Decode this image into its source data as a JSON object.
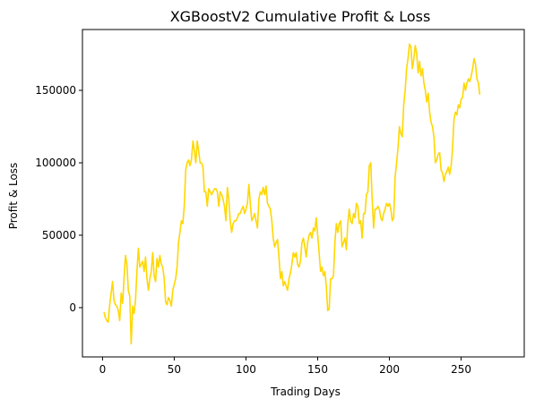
{
  "chart_data": {
    "type": "line",
    "title": "XGBoostV2 Cumulative Profit & Loss",
    "xlabel": "Trading Days",
    "ylabel": "Profit & Loss",
    "xlim": [
      -14,
      294
    ],
    "ylim": [
      -34000,
      192000
    ],
    "xticks": [
      0,
      50,
      100,
      150,
      200,
      250
    ],
    "yticks": [
      0,
      50000,
      100000,
      150000
    ],
    "xtick_labels": [
      "0",
      "50",
      "100",
      "150",
      "200",
      "250"
    ],
    "ytick_labels": [
      "0",
      "50000",
      "100000",
      "150000"
    ],
    "grid": false,
    "series": [
      {
        "color": "#FFD700",
        "points": [
          [
            1,
            -3000
          ],
          [
            2,
            -7000
          ],
          [
            3,
            -9000
          ],
          [
            4,
            -10000
          ],
          [
            5,
            2000
          ],
          [
            6,
            10000
          ],
          [
            7,
            18000
          ],
          [
            8,
            5000
          ],
          [
            9,
            2000
          ],
          [
            10,
            1000
          ],
          [
            11,
            -2000
          ],
          [
            12,
            -9000
          ],
          [
            13,
            10000
          ],
          [
            14,
            3000
          ],
          [
            15,
            20000
          ],
          [
            16,
            36000
          ],
          [
            17,
            30000
          ],
          [
            18,
            12000
          ],
          [
            19,
            8000
          ],
          [
            20,
            -25000
          ],
          [
            21,
            1000
          ],
          [
            22,
            -4000
          ],
          [
            23,
            5000
          ],
          [
            24,
            25000
          ],
          [
            25,
            41000
          ],
          [
            26,
            28000
          ],
          [
            27,
            30000
          ],
          [
            28,
            32000
          ],
          [
            29,
            25000
          ],
          [
            30,
            35000
          ],
          [
            31,
            20000
          ],
          [
            32,
            12000
          ],
          [
            33,
            20000
          ],
          [
            34,
            25000
          ],
          [
            35,
            38000
          ],
          [
            36,
            22000
          ],
          [
            37,
            18000
          ],
          [
            38,
            34000
          ],
          [
            39,
            28000
          ],
          [
            40,
            36000
          ],
          [
            41,
            30000
          ],
          [
            42,
            28000
          ],
          [
            43,
            20000
          ],
          [
            44,
            4000
          ],
          [
            45,
            2000
          ],
          [
            46,
            7000
          ],
          [
            47,
            5000
          ],
          [
            48,
            1000
          ],
          [
            49,
            12000
          ],
          [
            50,
            16000
          ],
          [
            51,
            20000
          ],
          [
            52,
            28000
          ],
          [
            53,
            45000
          ],
          [
            54,
            52000
          ],
          [
            55,
            60000
          ],
          [
            56,
            58000
          ],
          [
            57,
            70000
          ],
          [
            58,
            95000
          ],
          [
            59,
            100000
          ],
          [
            60,
            102000
          ],
          [
            61,
            98000
          ],
          [
            62,
            102000
          ],
          [
            63,
            115000
          ],
          [
            64,
            108000
          ],
          [
            65,
            100000
          ],
          [
            66,
            115000
          ],
          [
            67,
            108000
          ],
          [
            68,
            100000
          ],
          [
            69,
            100000
          ],
          [
            70,
            97000
          ],
          [
            71,
            80000
          ],
          [
            72,
            80000
          ],
          [
            73,
            70000
          ],
          [
            74,
            82000
          ],
          [
            75,
            80000
          ],
          [
            76,
            78000
          ],
          [
            77,
            80000
          ],
          [
            78,
            82000
          ],
          [
            79,
            82000
          ],
          [
            80,
            80000
          ],
          [
            81,
            70000
          ],
          [
            82,
            80000
          ],
          [
            83,
            78000
          ],
          [
            84,
            75000
          ],
          [
            85,
            70000
          ],
          [
            86,
            60000
          ],
          [
            87,
            83000
          ],
          [
            88,
            75000
          ],
          [
            89,
            60000
          ],
          [
            90,
            52000
          ],
          [
            91,
            58000
          ],
          [
            92,
            60000
          ],
          [
            93,
            60000
          ],
          [
            94,
            62000
          ],
          [
            95,
            65000
          ],
          [
            96,
            65000
          ],
          [
            97,
            68000
          ],
          [
            98,
            70000
          ],
          [
            99,
            65000
          ],
          [
            100,
            68000
          ],
          [
            101,
            72000
          ],
          [
            102,
            85000
          ],
          [
            103,
            72000
          ],
          [
            104,
            60000
          ],
          [
            105,
            62000
          ],
          [
            106,
            65000
          ],
          [
            107,
            60000
          ],
          [
            108,
            55000
          ],
          [
            109,
            75000
          ],
          [
            110,
            80000
          ],
          [
            111,
            78000
          ],
          [
            112,
            83000
          ],
          [
            113,
            78000
          ],
          [
            114,
            84000
          ],
          [
            115,
            72000
          ],
          [
            116,
            70000
          ],
          [
            117,
            68000
          ],
          [
            118,
            60000
          ],
          [
            119,
            48000
          ],
          [
            120,
            42000
          ],
          [
            121,
            45000
          ],
          [
            122,
            47000
          ],
          [
            123,
            35000
          ],
          [
            124,
            20000
          ],
          [
            125,
            25000
          ],
          [
            126,
            15000
          ],
          [
            127,
            18000
          ],
          [
            128,
            15000
          ],
          [
            129,
            12000
          ],
          [
            130,
            20000
          ],
          [
            131,
            24000
          ],
          [
            132,
            30000
          ],
          [
            133,
            38000
          ],
          [
            134,
            35000
          ],
          [
            135,
            38000
          ],
          [
            136,
            30000
          ],
          [
            137,
            28000
          ],
          [
            138,
            32000
          ],
          [
            139,
            45000
          ],
          [
            140,
            48000
          ],
          [
            141,
            42000
          ],
          [
            142,
            35000
          ],
          [
            143,
            45000
          ],
          [
            144,
            50000
          ],
          [
            145,
            52000
          ],
          [
            146,
            48000
          ],
          [
            147,
            55000
          ],
          [
            148,
            53000
          ],
          [
            149,
            62000
          ],
          [
            150,
            50000
          ],
          [
            151,
            38000
          ],
          [
            152,
            25000
          ],
          [
            153,
            28000
          ],
          [
            154,
            22000
          ],
          [
            155,
            25000
          ],
          [
            156,
            15000
          ],
          [
            157,
            -2000
          ],
          [
            158,
            -1000
          ],
          [
            159,
            20000
          ],
          [
            160,
            20000
          ],
          [
            161,
            22000
          ],
          [
            162,
            45000
          ],
          [
            163,
            58000
          ],
          [
            164,
            52000
          ],
          [
            165,
            58000
          ],
          [
            166,
            60000
          ],
          [
            167,
            42000
          ],
          [
            168,
            45000
          ],
          [
            169,
            48000
          ],
          [
            170,
            40000
          ],
          [
            171,
            58000
          ],
          [
            172,
            68000
          ],
          [
            173,
            60000
          ],
          [
            174,
            58000
          ],
          [
            175,
            65000
          ],
          [
            176,
            62000
          ],
          [
            177,
            72000
          ],
          [
            178,
            70000
          ],
          [
            179,
            58000
          ],
          [
            180,
            60000
          ],
          [
            181,
            48000
          ],
          [
            182,
            65000
          ],
          [
            183,
            65000
          ],
          [
            184,
            78000
          ],
          [
            185,
            80000
          ],
          [
            186,
            98000
          ],
          [
            187,
            100000
          ],
          [
            188,
            75000
          ],
          [
            189,
            55000
          ],
          [
            190,
            68000
          ],
          [
            191,
            68000
          ],
          [
            192,
            70000
          ],
          [
            193,
            68000
          ],
          [
            194,
            62000
          ],
          [
            195,
            60000
          ],
          [
            196,
            65000
          ],
          [
            197,
            68000
          ],
          [
            198,
            72000
          ],
          [
            199,
            70000
          ],
          [
            200,
            72000
          ],
          [
            201,
            68000
          ],
          [
            202,
            60000
          ],
          [
            203,
            62000
          ],
          [
            204,
            90000
          ],
          [
            205,
            100000
          ],
          [
            206,
            110000
          ],
          [
            207,
            125000
          ],
          [
            208,
            120000
          ],
          [
            209,
            118000
          ],
          [
            210,
            140000
          ],
          [
            211,
            150000
          ],
          [
            212,
            165000
          ],
          [
            213,
            172000
          ],
          [
            214,
            182000
          ],
          [
            215,
            180000
          ],
          [
            216,
            165000
          ],
          [
            217,
            172000
          ],
          [
            218,
            181000
          ],
          [
            219,
            175000
          ],
          [
            220,
            162000
          ],
          [
            221,
            170000
          ],
          [
            222,
            160000
          ],
          [
            223,
            165000
          ],
          [
            224,
            155000
          ],
          [
            225,
            150000
          ],
          [
            226,
            142000
          ],
          [
            227,
            148000
          ],
          [
            228,
            135000
          ],
          [
            229,
            128000
          ],
          [
            230,
            125000
          ],
          [
            231,
            118000
          ],
          [
            232,
            100000
          ],
          [
            233,
            102000
          ],
          [
            234,
            106000
          ],
          [
            235,
            107000
          ],
          [
            236,
            95000
          ],
          [
            237,
            93000
          ],
          [
            238,
            87000
          ],
          [
            239,
            92000
          ],
          [
            240,
            94000
          ],
          [
            241,
            97000
          ],
          [
            242,
            92000
          ],
          [
            243,
            98000
          ],
          [
            244,
            110000
          ],
          [
            245,
            130000
          ],
          [
            246,
            135000
          ],
          [
            247,
            133000
          ],
          [
            248,
            140000
          ],
          [
            249,
            138000
          ],
          [
            250,
            144000
          ],
          [
            251,
            145000
          ],
          [
            252,
            155000
          ],
          [
            253,
            150000
          ],
          [
            254,
            155000
          ],
          [
            255,
            158000
          ],
          [
            256,
            156000
          ],
          [
            257,
            160000
          ],
          [
            258,
            165000
          ],
          [
            259,
            172000
          ],
          [
            260,
            168000
          ],
          [
            261,
            158000
          ],
          [
            262,
            155000
          ],
          [
            263,
            147000
          ]
        ]
      }
    ]
  }
}
